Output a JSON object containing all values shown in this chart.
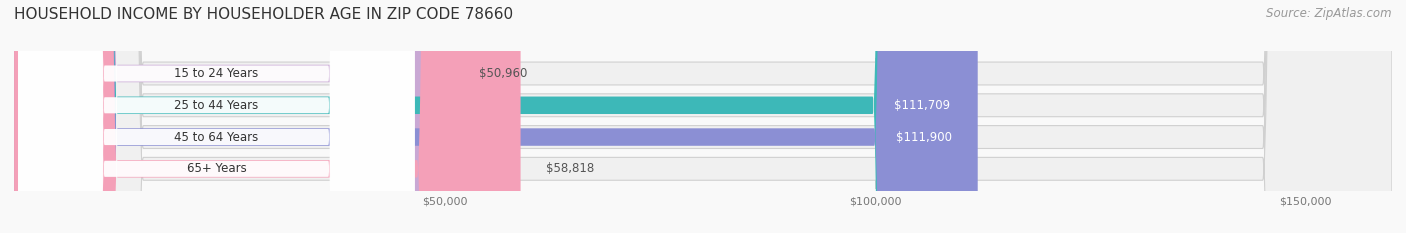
{
  "title": "HOUSEHOLD INCOME BY HOUSEHOLDER AGE IN ZIP CODE 78660",
  "source": "Source: ZipAtlas.com",
  "categories": [
    "15 to 24 Years",
    "25 to 44 Years",
    "45 to 64 Years",
    "65+ Years"
  ],
  "values": [
    50960,
    111709,
    111900,
    58818
  ],
  "bar_colors": [
    "#c9a8d4",
    "#3db8b8",
    "#8b8fd4",
    "#f4a0b8"
  ],
  "track_color": "#efefef",
  "bar_bg_color": "#e8e8e8",
  "label_colors": [
    "#555555",
    "#ffffff",
    "#ffffff",
    "#555555"
  ],
  "value_labels": [
    "$50,960",
    "$111,709",
    "$111,900",
    "$58,818"
  ],
  "x_ticks": [
    50000,
    100000,
    150000
  ],
  "x_tick_labels": [
    "$50,000",
    "$100,000",
    "$150,000"
  ],
  "xlim": [
    0,
    160000
  ],
  "background_color": "#f9f9f9",
  "title_fontsize": 11,
  "source_fontsize": 8.5
}
